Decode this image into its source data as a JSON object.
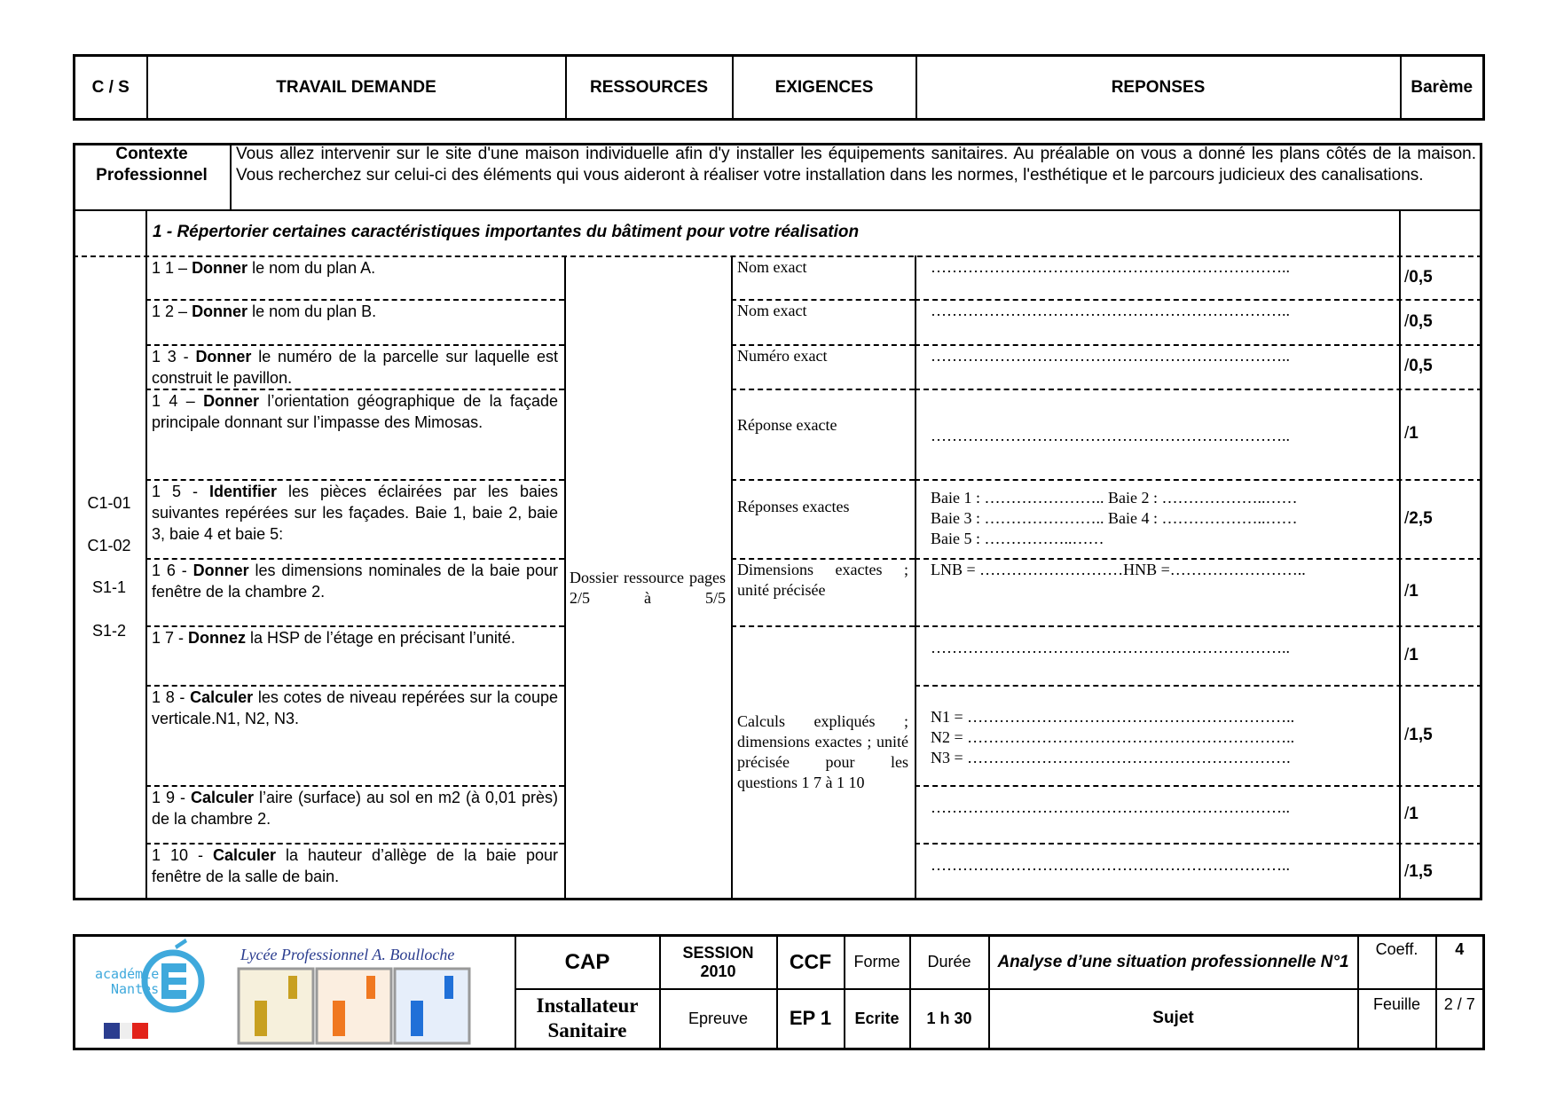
{
  "header": {
    "cs": "C / S",
    "travail": "TRAVAIL DEMANDE",
    "ressources": "RESSOURCES",
    "exigences": "EXIGENCES",
    "reponses": "REPONSES",
    "bareme": "Barème"
  },
  "context": {
    "label_1": "Contexte",
    "label_2": "Professionnel",
    "text": "Vous allez intervenir sur le site d'une maison individuelle afin d'y installer les équipements sanitaires. Au préalable on vous a donné les plans côtés de la maison. Vous recherchez sur celui-ci des éléments qui vous aideront à réaliser votre installation dans les normes, l'esthétique et le parcours judicieux des canalisations."
  },
  "section_title": "1 - Répertorier certaines caractéristiques importantes du bâtiment pour votre réalisation",
  "competences": [
    "C1-01",
    "C1-02",
    "S1-1",
    "S1-2"
  ],
  "ressources": "Dossier ressource pages 2/5 à 5/5",
  "questions": [
    {
      "num": "1 1 –",
      "verb": "Donner",
      "rest": " le nom du plan A.",
      "exigence": "Nom exact",
      "reponse": [
        "………………………………………………………….."
      ],
      "bareme_prefix": "/ ",
      "bareme": "0,5"
    },
    {
      "num": "1 2  –",
      "verb": "Donner",
      "rest": " le nom du plan B.",
      "exigence": "Nom exact",
      "reponse": [
        "………………………………………………………….."
      ],
      "bareme_prefix": "/ ",
      "bareme": "0,5"
    },
    {
      "num": "1 3 -",
      "verb": "Donner",
      "rest": " le numéro de la parcelle sur laquelle est construit le pavillon.",
      "exigence": "Numéro exact",
      "reponse": [
        "………………………………………………………….."
      ],
      "bareme_prefix": "/ ",
      "bareme": "0,5"
    },
    {
      "num": " 1 4 –",
      "verb": "Donner",
      "rest": " l’orientation géographique de la façade principale donnant sur l’impasse des Mimosas.",
      "exigence": "Réponse exacte",
      "reponse": [
        "………………………………………………………….."
      ],
      "bareme_prefix": "/ ",
      "bareme": "1"
    },
    {
      "num": "1 5 -",
      "verb": "Identifier",
      "rest": " les pièces éclairées par les baies suivantes repérées sur les façades. Baie 1, baie 2, baie 3, baie 4 et baie 5:",
      "exigence": "Réponses exactes",
      "reponse": [
        "Baie 1 : ………………….. Baie 2 : ………………..……",
        "Baie 3 : ………………….. Baie 4 : ………………..……",
        "Baie 5 : ……………..……"
      ],
      "bareme_prefix": "/ ",
      "bareme": "2,5"
    },
    {
      "num": "1 6 -",
      "verb": "Donner",
      "rest": " les dimensions nominales de la baie pour fenêtre de la chambre 2.",
      "exigence": "Dimensions exactes ; unité précisée",
      "reponse": [
        "LNB = ………………………HNB =…………………….."
      ],
      "bareme_prefix": "/ ",
      "bareme": "1"
    },
    {
      "num": "1 7 -",
      "verb": "Donnez",
      "rest": " la HSP de l’étage en précisant l’unité.",
      "exigence": "",
      "reponse": [
        "………………………………………………………….."
      ],
      "bareme_prefix": "/ ",
      "bareme": "1"
    },
    {
      "num": "1 8 -",
      "verb": "Calculer",
      "rest": " les cotes de niveau repérées sur la coupe verticale.N1, N2, N3.",
      "exigence": "",
      "reponse": [
        "N1 = ……………………………………………………..",
        "N2 = ……………………………………………………..",
        "N3 =  ……………………………………………………."
      ],
      "bareme_prefix": "/ ",
      "bareme": "1,5"
    },
    {
      "num": "1 9 -",
      "verb": "Calculer",
      "rest": " l’aire (surface) au sol en m2 (à 0,01 près) de la chambre 2.",
      "exigence": "",
      "reponse": [
        "………………………………………………………….."
      ],
      "bareme_prefix": "/ ",
      "bareme": "1"
    },
    {
      "num": "1 10 -",
      "verb": "Calculer",
      "rest": " la hauteur d’allège de la baie pour fenêtre de la salle de bain.",
      "exigence": "",
      "reponse": [
        "………………………………………………………….."
      ],
      "bareme_prefix": "/ ",
      "bareme": "1,5"
    }
  ],
  "merged_exigence": "Calculs expliqués ; dimensions exactes ; unité précisée pour les questions 1 7 à 1 10",
  "footer": {
    "logo_academie": "académie Nantes",
    "lycee": "Lycée Professionnel A. Boulloche",
    "cap": "CAP",
    "diploma_1": "Installateur",
    "diploma_2": "Sanitaire",
    "session": "SESSION",
    "year": "2010",
    "epreuve_label": "Epreuve",
    "ccf": "CCF",
    "epreuve": "EP 1",
    "forme_label": "Forme",
    "forme": "Ecrite",
    "duree_label": "Durée",
    "duree": "1 h 30",
    "title": "Analyse d’une situation professionnelle N°1",
    "subject": "Sujet",
    "coeff_label": "Coeff.",
    "coeff": "4",
    "feuille_label": "Feuille",
    "feuille": "2 / 7",
    "colors": {
      "academie_blue": "#3fa9dc",
      "flag_blue": "#2b3d8f",
      "flag_red": "#e2231a",
      "gold": "#c8a020",
      "orange": "#f07820",
      "blue": "#2070d8"
    }
  }
}
